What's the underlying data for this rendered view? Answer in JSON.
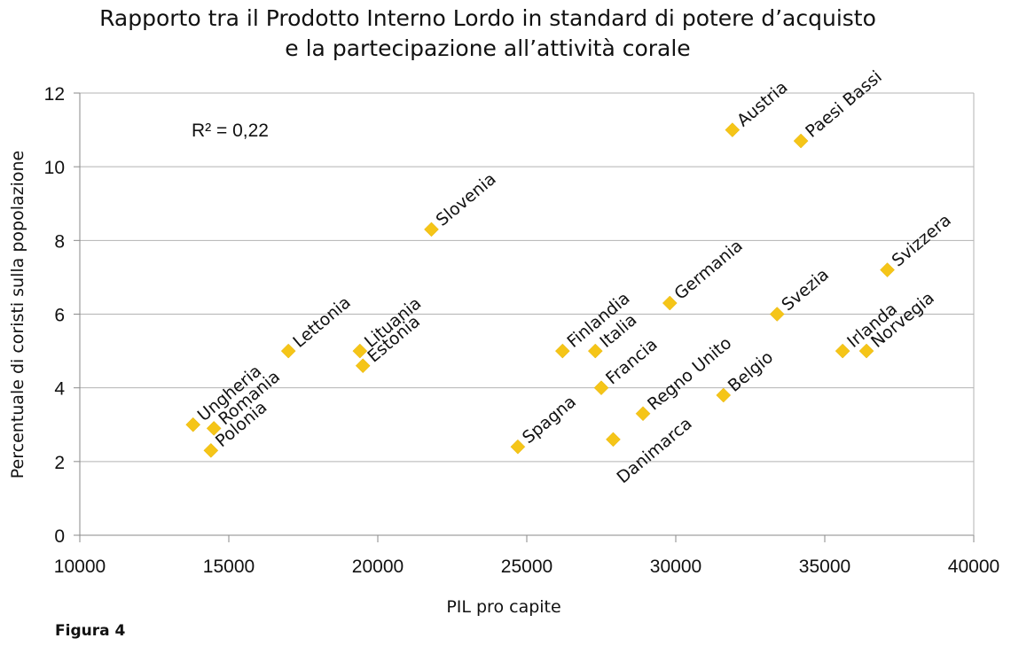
{
  "chart_data": {
    "type": "scatter",
    "title_lines": [
      "Rapporto tra il Prodotto Interno Lordo in standard di potere d’acquisto",
      "e la partecipazione all’attività corale"
    ],
    "xlabel": "PIL pro capite",
    "ylabel": "Percentuale di coristi sulla popolazione",
    "xlim": [
      10000,
      40000
    ],
    "ylim": [
      0,
      12
    ],
    "x_ticks": [
      10000,
      15000,
      20000,
      25000,
      30000,
      35000,
      40000
    ],
    "y_ticks": [
      0,
      2,
      4,
      6,
      8,
      10,
      12
    ],
    "grid": true,
    "marker_color": "#F5C518",
    "annotation": "R² = 0,22",
    "points": [
      {
        "label": "Ungheria",
        "x": 13800,
        "y": 3.0
      },
      {
        "label": "Romania",
        "x": 14500,
        "y": 2.9
      },
      {
        "label": "Polonia",
        "x": 14400,
        "y": 2.3
      },
      {
        "label": "Lettonia",
        "x": 17000,
        "y": 5.0
      },
      {
        "label": "Lituania",
        "x": 19400,
        "y": 5.0
      },
      {
        "label": "Estonia",
        "x": 19500,
        "y": 4.6
      },
      {
        "label": "Slovenia",
        "x": 21800,
        "y": 8.3
      },
      {
        "label": "Spagna",
        "x": 24700,
        "y": 2.4
      },
      {
        "label": "Finlandia",
        "x": 26200,
        "y": 5.0
      },
      {
        "label": "Italia",
        "x": 27300,
        "y": 5.0
      },
      {
        "label": "Francia",
        "x": 27500,
        "y": 4.0
      },
      {
        "label": "Danimarca",
        "x": 27900,
        "y": 2.6
      },
      {
        "label": "Regno Unito",
        "x": 28900,
        "y": 3.3
      },
      {
        "label": "Germania",
        "x": 29800,
        "y": 6.3
      },
      {
        "label": "Belgio",
        "x": 31600,
        "y": 3.8
      },
      {
        "label": "Austria",
        "x": 31900,
        "y": 11.0
      },
      {
        "label": "Paesi Bassi",
        "x": 34200,
        "y": 10.7
      },
      {
        "label": "Svezia",
        "x": 33400,
        "y": 6.0
      },
      {
        "label": "Irlanda",
        "x": 35600,
        "y": 5.0
      },
      {
        "label": "Norvegia",
        "x": 36400,
        "y": 5.0
      },
      {
        "label": "Svizzera",
        "x": 37100,
        "y": 7.2
      }
    ]
  },
  "figure_label": "Figura 4"
}
